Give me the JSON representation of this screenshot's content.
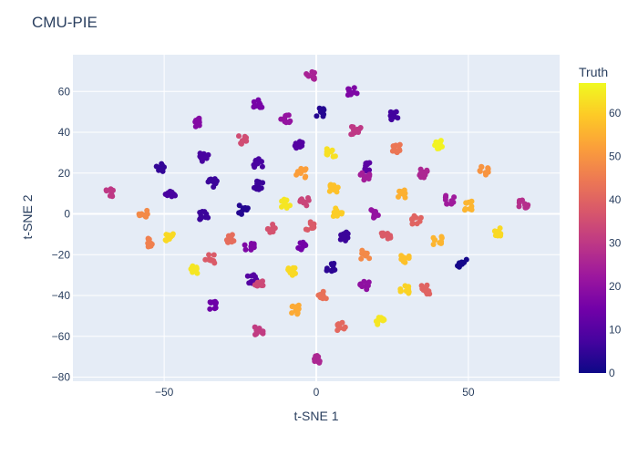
{
  "chart_data": {
    "type": "scatter",
    "title": "CMU-PIE",
    "xlabel": "t-SNE 1",
    "ylabel": "t-SNE 2",
    "xlim": [
      -80,
      80
    ],
    "ylim": [
      -82,
      78
    ],
    "xticks": [
      -50,
      0,
      50
    ],
    "yticks": [
      -80,
      -60,
      -40,
      -20,
      0,
      20,
      40,
      60
    ],
    "grid": true,
    "colorbar": {
      "title": "Truth",
      "range": [
        0,
        67
      ],
      "ticks": [
        0,
        10,
        20,
        30,
        40,
        50,
        60
      ],
      "colorscale": "plasma"
    },
    "clusters": [
      {
        "x": -68,
        "y": 10,
        "truth": 30
      },
      {
        "x": -57,
        "y": 0,
        "truth": 48
      },
      {
        "x": -55,
        "y": -14,
        "truth": 46
      },
      {
        "x": -51,
        "y": 23,
        "truth": 5
      },
      {
        "x": -48,
        "y": 9,
        "truth": 8
      },
      {
        "x": -48,
        "y": -12,
        "truth": 62
      },
      {
        "x": -39,
        "y": 45,
        "truth": 18
      },
      {
        "x": -37,
        "y": 28,
        "truth": 8
      },
      {
        "x": -37,
        "y": -1,
        "truth": 6
      },
      {
        "x": -40,
        "y": -27,
        "truth": 64
      },
      {
        "x": -35,
        "y": -22,
        "truth": 38
      },
      {
        "x": -34,
        "y": 15,
        "truth": 6
      },
      {
        "x": -34,
        "y": -45,
        "truth": 14
      },
      {
        "x": -28,
        "y": -12,
        "truth": 42
      },
      {
        "x": -24,
        "y": 36,
        "truth": 35
      },
      {
        "x": -24,
        "y": 2,
        "truth": 3
      },
      {
        "x": -22,
        "y": -16,
        "truth": 17
      },
      {
        "x": -21,
        "y": -32,
        "truth": 10
      },
      {
        "x": -19,
        "y": 54,
        "truth": 16
      },
      {
        "x": -19,
        "y": 25,
        "truth": 8
      },
      {
        "x": -19,
        "y": 14,
        "truth": 6
      },
      {
        "x": -19,
        "y": -35,
        "truth": 34
      },
      {
        "x": -19,
        "y": -57,
        "truth": 31
      },
      {
        "x": -15,
        "y": -7,
        "truth": 36
      },
      {
        "x": -10,
        "y": 47,
        "truth": 21
      },
      {
        "x": -10,
        "y": 5,
        "truth": 64
      },
      {
        "x": -8,
        "y": -28,
        "truth": 62
      },
      {
        "x": -7,
        "y": -47,
        "truth": 54
      },
      {
        "x": -6,
        "y": 34,
        "truth": 10
      },
      {
        "x": -5,
        "y": 20,
        "truth": 52
      },
      {
        "x": -5,
        "y": -16,
        "truth": 15
      },
      {
        "x": -4,
        "y": 6,
        "truth": 33
      },
      {
        "x": -2,
        "y": 68,
        "truth": 25
      },
      {
        "x": -2,
        "y": -6,
        "truth": 38
      },
      {
        "x": 1,
        "y": 50,
        "truth": 3
      },
      {
        "x": 1,
        "y": -71,
        "truth": 26
      },
      {
        "x": 2,
        "y": -40,
        "truth": 43
      },
      {
        "x": 5,
        "y": 30,
        "truth": 63
      },
      {
        "x": 5,
        "y": -26,
        "truth": 4
      },
      {
        "x": 6,
        "y": 13,
        "truth": 58
      },
      {
        "x": 7,
        "y": 1,
        "truth": 60
      },
      {
        "x": 8,
        "y": -55,
        "truth": 41
      },
      {
        "x": 9,
        "y": -11,
        "truth": 6
      },
      {
        "x": 12,
        "y": 60,
        "truth": 17
      },
      {
        "x": 13,
        "y": 41,
        "truth": 30
      },
      {
        "x": 16,
        "y": 23,
        "truth": 11
      },
      {
        "x": 16,
        "y": 18,
        "truth": 24
      },
      {
        "x": 16,
        "y": -20,
        "truth": 48
      },
      {
        "x": 16,
        "y": -35,
        "truth": 20
      },
      {
        "x": 19,
        "y": 0,
        "truth": 21
      },
      {
        "x": 21,
        "y": -52,
        "truth": 64
      },
      {
        "x": 23,
        "y": -11,
        "truth": 38
      },
      {
        "x": 26,
        "y": 48,
        "truth": 7
      },
      {
        "x": 26,
        "y": 32,
        "truth": 44
      },
      {
        "x": 28,
        "y": 10,
        "truth": 55
      },
      {
        "x": 29,
        "y": -22,
        "truth": 58
      },
      {
        "x": 29,
        "y": -37,
        "truth": 61
      },
      {
        "x": 33,
        "y": -3,
        "truth": 40
      },
      {
        "x": 35,
        "y": 20,
        "truth": 26
      },
      {
        "x": 36,
        "y": -37,
        "truth": 40
      },
      {
        "x": 40,
        "y": 34,
        "truth": 66
      },
      {
        "x": 40,
        "y": -13,
        "truth": 56
      },
      {
        "x": 44,
        "y": 7,
        "truth": 23
      },
      {
        "x": 48,
        "y": -24,
        "truth": 1
      },
      {
        "x": 50,
        "y": 4,
        "truth": 56
      },
      {
        "x": 55,
        "y": 21,
        "truth": 50
      },
      {
        "x": 60,
        "y": -9,
        "truth": 62
      },
      {
        "x": 68,
        "y": 5,
        "truth": 28
      }
    ]
  }
}
